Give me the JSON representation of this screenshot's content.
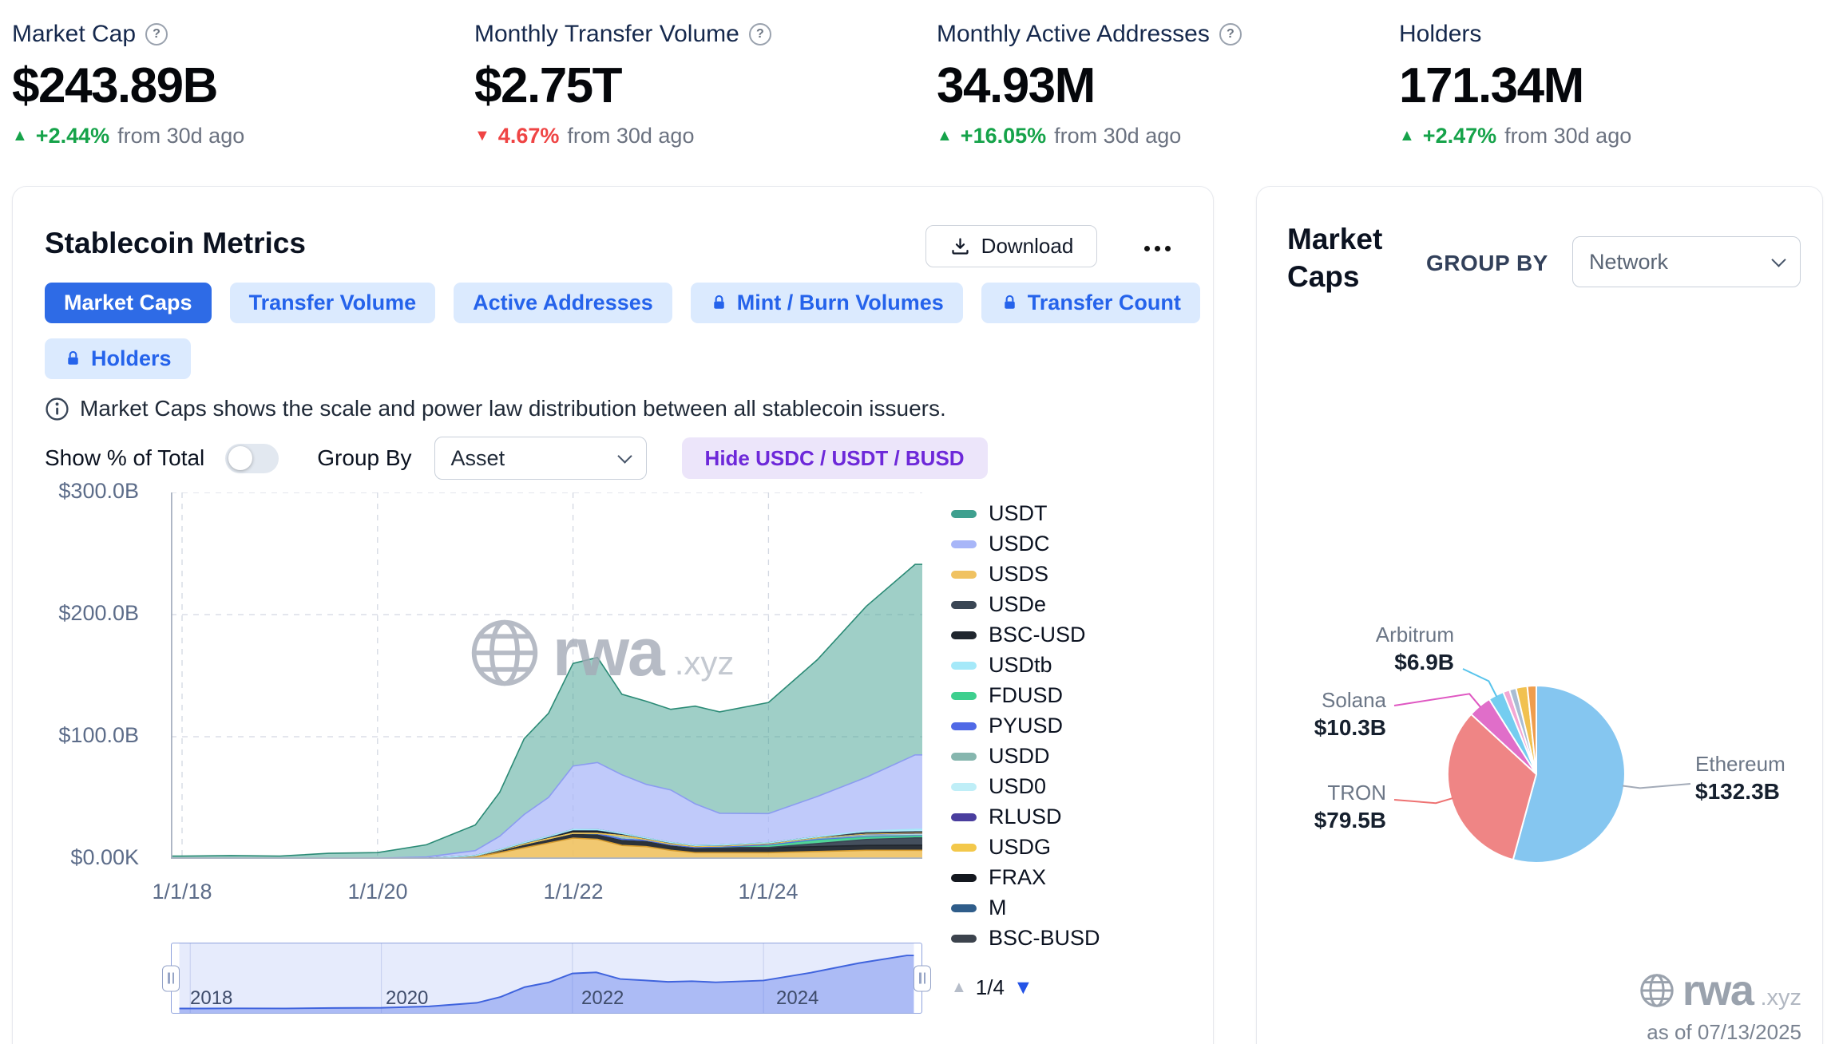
{
  "stats": [
    {
      "label": "Market Cap",
      "value": "$243.89B",
      "delta": "+2.44%",
      "direction": "up",
      "note": "from 30d ago",
      "help": true
    },
    {
      "label": "Monthly Transfer Volume",
      "value": "$2.75T",
      "delta": "4.67%",
      "direction": "down",
      "note": "from 30d ago",
      "help": true
    },
    {
      "label": "Monthly Active Addresses",
      "value": "34.93M",
      "delta": "+16.05%",
      "direction": "up",
      "note": "from 30d ago",
      "help": true
    },
    {
      "label": "Holders",
      "value": "171.34M",
      "delta": "+2.47%",
      "direction": "up",
      "note": "from 30d ago",
      "help": false
    }
  ],
  "main_panel": {
    "title": "Stablecoin Metrics",
    "download_label": "Download",
    "tabs": [
      {
        "label": "Market Caps",
        "active": true,
        "locked": false
      },
      {
        "label": "Transfer Volume",
        "active": false,
        "locked": false
      },
      {
        "label": "Active Addresses",
        "active": false,
        "locked": false
      },
      {
        "label": "Mint / Burn Volumes",
        "active": false,
        "locked": true
      },
      {
        "label": "Transfer Count",
        "active": false,
        "locked": true
      },
      {
        "label": "Holders",
        "active": false,
        "locked": true
      }
    ],
    "info_text": "Market Caps shows the scale and power law distribution between all stablecoin issuers.",
    "controls": {
      "show_pct_label": "Show % of Total",
      "show_pct_on": false,
      "group_by_label": "Group By",
      "group_by_value": "Asset",
      "hide_button_label": "Hide USDC / USDT / BUSD"
    },
    "legend_page": "1/4"
  },
  "right_panel": {
    "title": "Market Caps",
    "group_by_label": "GROUP BY",
    "group_by_value": "Network",
    "logo_text": "rwa",
    "logo_suffix": ".xyz",
    "as_of": "as of 07/13/2025"
  },
  "watermark": {
    "text": "rwa",
    "suffix": ".xyz"
  },
  "chart_data": [
    {
      "type": "area",
      "stacked": true,
      "units": "USD billions",
      "grid": true,
      "legend_position": "right",
      "watermark": "rwa.xyz",
      "ylim": [
        0,
        300
      ],
      "yticks": [
        300,
        200,
        100,
        0
      ],
      "ytick_labels": [
        "$300.0B",
        "$200.0B",
        "$100.0B",
        "$0.00K"
      ],
      "xticks": [
        2018,
        2020,
        2022,
        2024
      ],
      "xtick_labels": [
        "1/1/18",
        "1/1/20",
        "1/1/22",
        "1/1/24"
      ],
      "x": [
        2018,
        2018.5,
        2019,
        2019.5,
        2020,
        2020.5,
        2021,
        2021.25,
        2021.5,
        2021.75,
        2022,
        2022.25,
        2022.5,
        2022.75,
        2023,
        2023.25,
        2023.5,
        2024,
        2024.5,
        2025,
        2025.5
      ],
      "series": [
        {
          "name": "USDT",
          "color": "#3fa08f",
          "line": "#2a8a75",
          "values": [
            2.2,
            2.7,
            2.0,
            4.1,
            4.6,
            10,
            21,
            36,
            62,
            69,
            84,
            86,
            66,
            68,
            66,
            80,
            83,
            91,
            112,
            140,
            156
          ]
        },
        {
          "name": "USDC",
          "color": "#a8b6f8",
          "line": "#8b9cf0",
          "values": [
            0,
            0,
            0.25,
            0.4,
            0.5,
            1.1,
            4,
            11,
            23,
            32,
            52,
            55,
            48,
            44,
            43,
            34,
            26,
            24,
            33,
            44,
            61
          ]
        },
        {
          "name": "USDS",
          "color": "#f0c261",
          "line": "#d59b2f",
          "values": [
            0,
            0,
            0,
            0,
            0,
            0.2,
            1.5,
            5,
            9,
            13,
            17,
            16,
            11,
            10,
            7,
            5,
            5,
            5,
            6,
            7,
            7
          ]
        },
        {
          "name": "USDe",
          "color": "#3a4654",
          "values": [
            0,
            0,
            0,
            0,
            0,
            0,
            0,
            0,
            0,
            0,
            0,
            0,
            0,
            0,
            0,
            0.2,
            0.3,
            0.3,
            2.5,
            4.8,
            5.9
          ]
        },
        {
          "name": "BSC-USD",
          "color": "#20262e",
          "values": [
            0,
            0,
            0,
            0,
            0,
            0.2,
            1,
            2,
            3,
            3.5,
            4,
            4.5,
            5,
            5,
            4.5,
            4.2,
            4,
            4,
            4,
            4,
            4.2
          ]
        },
        {
          "name": "USDtb",
          "color": "#a5e9f9",
          "values": [
            0,
            0,
            0,
            0,
            0,
            0,
            0,
            0,
            0,
            0,
            0,
            0,
            0,
            0,
            0,
            0,
            0,
            0,
            0,
            1.4,
            2
          ]
        },
        {
          "name": "FDUSD",
          "color": "#3ecf8e",
          "values": [
            0,
            0,
            0,
            0,
            0,
            0,
            0,
            0,
            0,
            0,
            0,
            0,
            0,
            0,
            0,
            0,
            0.4,
            2,
            3,
            2,
            1.4
          ]
        },
        {
          "name": "PYUSD",
          "color": "#5069e6",
          "values": [
            0,
            0,
            0,
            0,
            0,
            0,
            0,
            0,
            0,
            0,
            0,
            0,
            0,
            0,
            0,
            0,
            0.1,
            0.3,
            0.5,
            0.7,
            0.9
          ]
        },
        {
          "name": "USDD",
          "color": "#86b6ae",
          "values": [
            0,
            0,
            0,
            0,
            0,
            0,
            0,
            0,
            0,
            0,
            0,
            0.3,
            3,
            0.8,
            0.7,
            0.7,
            0.7,
            0.7,
            0.7,
            0.5,
            0.4
          ]
        },
        {
          "name": "USD0",
          "color": "#bfeef7",
          "values": [
            0,
            0,
            0,
            0,
            0,
            0,
            0,
            0,
            0,
            0,
            0,
            0,
            0,
            0,
            0,
            0,
            0,
            0,
            0.6,
            1,
            0.6
          ]
        },
        {
          "name": "RLUSD",
          "color": "#4a3e9e",
          "values": [
            0,
            0,
            0,
            0,
            0,
            0,
            0,
            0,
            0,
            0,
            0,
            0,
            0,
            0,
            0,
            0,
            0,
            0,
            0,
            0.3,
            0.5
          ]
        },
        {
          "name": "USDG",
          "color": "#f3c84b",
          "values": [
            0,
            0,
            0,
            0,
            0,
            0,
            0,
            0,
            0,
            0,
            0,
            0,
            0,
            0,
            0,
            0,
            0,
            0,
            0,
            0.2,
            0.4
          ]
        },
        {
          "name": "FRAX",
          "color": "#14181f",
          "values": [
            0,
            0,
            0,
            0,
            0,
            0,
            0.1,
            0.3,
            1,
            1.5,
            2.7,
            2.8,
            1.5,
            1,
            1,
            0.8,
            0.7,
            0.65,
            0.65,
            0.6,
            0.5
          ]
        },
        {
          "name": "M",
          "color": "#2f5d8a",
          "values": [
            0,
            0,
            0,
            0,
            0,
            0,
            0,
            0,
            0,
            0,
            0,
            0,
            0,
            0,
            0,
            0,
            0,
            0,
            0,
            0.1,
            0.2
          ]
        },
        {
          "name": "BSC-BUSD",
          "color": "#3c434d",
          "values": [
            0,
            0,
            0,
            0,
            0,
            0,
            0.1,
            0.2,
            0.3,
            0.3,
            0.3,
            0.3,
            0.3,
            0.2,
            0.2,
            0.1,
            0.1,
            0.1,
            0.1,
            0.1,
            0.1
          ]
        }
      ]
    },
    {
      "type": "area",
      "role": "timeline-brush",
      "x": [
        2018,
        2018.5,
        2019,
        2019.5,
        2020,
        2020.5,
        2021,
        2021.25,
        2021.5,
        2021.75,
        2022,
        2022.25,
        2022.5,
        2022.75,
        2023,
        2023.25,
        2023.5,
        2024,
        2024.5,
        2025,
        2025.5
      ],
      "values": [
        2.2,
        2.7,
        2.3,
        4.5,
        5.1,
        11.5,
        27.7,
        54.5,
        98.3,
        119.3,
        160,
        164.9,
        134.8,
        129,
        122.4,
        125,
        120.3,
        128.1,
        163.6,
        206.7,
        241.1
      ],
      "xticks": [
        2018,
        2020,
        2022,
        2024
      ],
      "xtick_labels": [
        "2018",
        "2020",
        "2022",
        "2024"
      ]
    },
    {
      "type": "pie",
      "group_by": "Network",
      "slices": [
        {
          "label": "Ethereum",
          "value_b": 132.3,
          "display": "$132.3B",
          "color": "#85c6f0"
        },
        {
          "label": "TRON",
          "value_b": 79.5,
          "display": "$79.5B",
          "color": "#ef8585"
        },
        {
          "label": "Solana",
          "value_b": 10.3,
          "display": "$10.3B",
          "color": "#e06ec9"
        },
        {
          "label": "Arbitrum",
          "value_b": 6.9,
          "display": "$6.9B",
          "color": "#74cdf0"
        },
        {
          "label": "",
          "value_b": 2.9,
          "display": "",
          "color": "#f3a7d4"
        },
        {
          "label": "",
          "value_b": 3.0,
          "display": "",
          "color": "#a9bdd3"
        },
        {
          "label": "",
          "value_b": 5.0,
          "display": "",
          "color": "#f1c150"
        },
        {
          "label": "",
          "value_b": 4.0,
          "display": "",
          "color": "#ef9d4d"
        }
      ],
      "as_of": "as of 07/13/2025"
    }
  ]
}
